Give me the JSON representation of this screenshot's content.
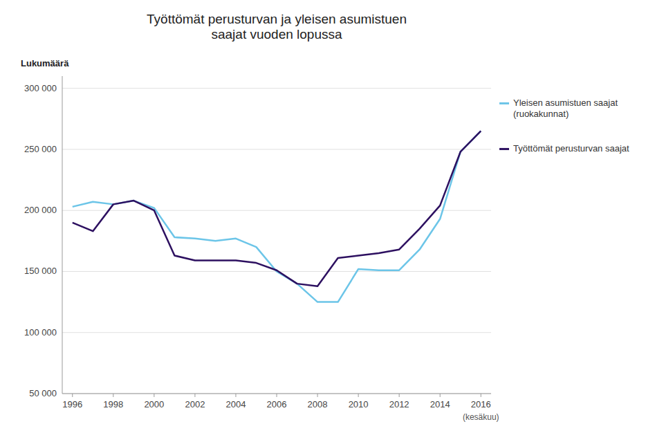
{
  "chart_data": {
    "type": "line",
    "title": "Työttömät perusturvan ja yleisen asumistuen\nsaajat vuoden lopussa",
    "y_label": "Lukumäärä",
    "annotations": [
      "(kesäkuu)"
    ],
    "x": [
      1996,
      1997,
      1998,
      1999,
      2000,
      2001,
      2002,
      2003,
      2004,
      2005,
      2006,
      2007,
      2008,
      2009,
      2010,
      2011,
      2012,
      2013,
      2014,
      2015,
      2016
    ],
    "series": [
      {
        "name": "Yleisen asumistuen saajat\n(ruokakunnat)",
        "color": "#6cc5e8",
        "values": [
          203000,
          207000,
          205000,
          208000,
          202000,
          178000,
          177000,
          175000,
          177000,
          170000,
          150000,
          140000,
          125000,
          125000,
          152000,
          151000,
          151000,
          168000,
          193000,
          248000,
          265000
        ]
      },
      {
        "name": "Työttömät perusturvan saajat",
        "color": "#2d1060",
        "values": [
          190000,
          183000,
          205000,
          208000,
          200000,
          163000,
          159000,
          159000,
          159000,
          157000,
          151000,
          140000,
          138000,
          161000,
          163000,
          165000,
          168000,
          185000,
          204000,
          248000,
          265000
        ]
      }
    ],
    "xlim": [
      1995.5,
      2016.5
    ],
    "xticks": [
      1996,
      1998,
      2000,
      2002,
      2004,
      2006,
      2008,
      2010,
      2012,
      2014,
      2016
    ],
    "ylim": [
      50000,
      310000
    ],
    "yticks": [
      {
        "value": 50000,
        "label": "50 000"
      },
      {
        "value": 100000,
        "label": "100 000"
      },
      {
        "value": 150000,
        "label": "150 000"
      },
      {
        "value": 200000,
        "label": "200 000"
      },
      {
        "value": 250000,
        "label": "250 000"
      },
      {
        "value": 300000,
        "label": "300 000"
      }
    ],
    "grid": true
  }
}
